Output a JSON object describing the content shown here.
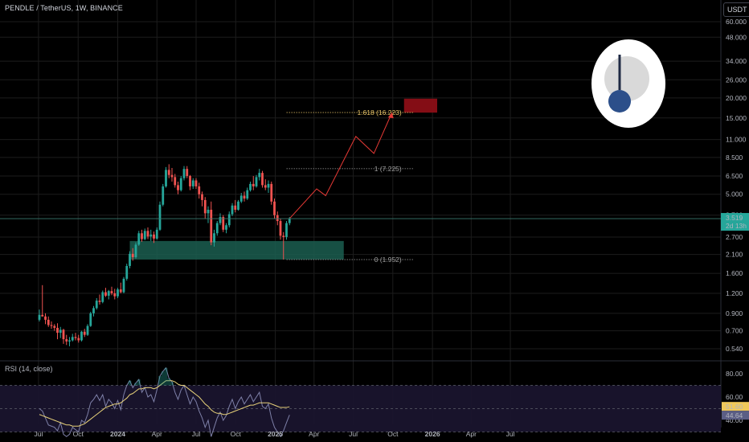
{
  "header": {
    "symbol_title": "PENDLE / TetherUS, 1W, BINANCE",
    "currency": "USDT"
  },
  "colors": {
    "up": "#26a69a",
    "down": "#ef5350",
    "zone": "#1b5e50",
    "target": "#8b0e16",
    "projection": "#e53935",
    "rsi_line": "#7e80a8",
    "rsi_ma": "#e8d27a",
    "grid": "#1c1c1c"
  },
  "chart_data": [
    {
      "type": "candlestick",
      "title": "PENDLE / TetherUS, 1W, BINANCE",
      "scale": "log",
      "y_ticks": [
        "60.000",
        "48.000",
        "34.000",
        "26.000",
        "20.000",
        "15.000",
        "11.000",
        "8.500",
        "6.500",
        "5.000",
        "3.700",
        "2.700",
        "2.100",
        "1.600",
        "1.200",
        "0.900",
        "0.700",
        "0.540"
      ],
      "y_tick_values": [
        60,
        48,
        34,
        26,
        20,
        15,
        11,
        8.5,
        6.5,
        5,
        3.7,
        2.7,
        2.1,
        1.6,
        1.2,
        0.9,
        0.7,
        0.54
      ],
      "x_ticks": [
        "Jul",
        "Oct",
        "2024",
        "Apr",
        "Jul",
        "Oct",
        "2025",
        "Apr",
        "Jul",
        "Oct",
        "2026",
        "Apr",
        "Jul"
      ],
      "x_tick_dates": [
        "2023-07-01",
        "2023-10-01",
        "2024-01-01",
        "2024-04-01",
        "2024-07-01",
        "2024-10-01",
        "2025-01-01",
        "2025-04-01",
        "2025-07-01",
        "2025-10-01",
        "2026-01-01",
        "2026-04-01",
        "2026-07-01"
      ],
      "start_date": "2023-07-03",
      "candles": [
        [
          0.82,
          0.95,
          0.8,
          0.88
        ],
        [
          0.88,
          1.35,
          0.86,
          0.86
        ],
        [
          0.86,
          0.9,
          0.77,
          0.82
        ],
        [
          0.82,
          0.86,
          0.74,
          0.76
        ],
        [
          0.76,
          0.8,
          0.72,
          0.75
        ],
        [
          0.75,
          0.77,
          0.7,
          0.73
        ],
        [
          0.73,
          0.78,
          0.62,
          0.68
        ],
        [
          0.68,
          0.74,
          0.63,
          0.71
        ],
        [
          0.71,
          0.72,
          0.58,
          0.62
        ],
        [
          0.62,
          0.66,
          0.57,
          0.6
        ],
        [
          0.6,
          0.64,
          0.56,
          0.61
        ],
        [
          0.61,
          0.67,
          0.6,
          0.64
        ],
        [
          0.64,
          0.68,
          0.61,
          0.63
        ],
        [
          0.63,
          0.66,
          0.59,
          0.61
        ],
        [
          0.61,
          0.7,
          0.6,
          0.69
        ],
        [
          0.69,
          0.72,
          0.64,
          0.66
        ],
        [
          0.66,
          0.77,
          0.65,
          0.75
        ],
        [
          0.75,
          0.92,
          0.74,
          0.9
        ],
        [
          0.9,
          1.0,
          0.86,
          0.97
        ],
        [
          0.97,
          1.12,
          0.95,
          1.08
        ],
        [
          1.08,
          1.18,
          1.02,
          1.06
        ],
        [
          1.06,
          1.25,
          1.04,
          1.22
        ],
        [
          1.22,
          1.3,
          1.14,
          1.16
        ],
        [
          1.16,
          1.26,
          1.1,
          1.24
        ],
        [
          1.24,
          1.32,
          1.17,
          1.2
        ],
        [
          1.2,
          1.28,
          1.1,
          1.15
        ],
        [
          1.15,
          1.3,
          1.12,
          1.27
        ],
        [
          1.27,
          1.4,
          1.2,
          1.22
        ],
        [
          1.22,
          1.52,
          1.2,
          1.48
        ],
        [
          1.48,
          1.84,
          1.44,
          1.78
        ],
        [
          1.78,
          2.2,
          1.72,
          2.12
        ],
        [
          2.12,
          2.3,
          1.92,
          2.02
        ],
        [
          2.02,
          2.5,
          1.98,
          2.42
        ],
        [
          2.42,
          2.95,
          2.38,
          2.85
        ],
        [
          2.85,
          3.0,
          2.52,
          2.62
        ],
        [
          2.62,
          3.05,
          2.58,
          2.95
        ],
        [
          2.95,
          3.1,
          2.62,
          2.72
        ],
        [
          2.72,
          3.0,
          2.55,
          2.8
        ],
        [
          2.8,
          2.92,
          2.48,
          2.64
        ],
        [
          2.64,
          3.1,
          2.6,
          3.0
        ],
        [
          3.0,
          4.5,
          2.95,
          4.3
        ],
        [
          4.3,
          5.8,
          4.2,
          5.6
        ],
        [
          5.6,
          7.4,
          5.5,
          7.1
        ],
        [
          7.1,
          7.7,
          6.3,
          6.6
        ],
        [
          6.6,
          7.3,
          6.0,
          6.4
        ],
        [
          6.4,
          6.7,
          5.5,
          5.7
        ],
        [
          5.7,
          6.0,
          5.0,
          5.3
        ],
        [
          5.3,
          6.5,
          5.2,
          6.3
        ],
        [
          6.3,
          7.5,
          6.1,
          7.2
        ],
        [
          7.2,
          7.5,
          6.3,
          6.5
        ],
        [
          6.5,
          6.6,
          5.3,
          5.6
        ],
        [
          5.6,
          6.3,
          5.4,
          6.1
        ],
        [
          6.1,
          6.3,
          5.4,
          5.6
        ],
        [
          5.6,
          5.9,
          4.7,
          5.0
        ],
        [
          5.0,
          5.2,
          4.2,
          4.6
        ],
        [
          4.6,
          4.8,
          3.5,
          3.8
        ],
        [
          3.8,
          4.2,
          3.3,
          4.0
        ],
        [
          4.0,
          4.5,
          2.4,
          2.5
        ],
        [
          2.5,
          3.0,
          2.35,
          2.85
        ],
        [
          2.85,
          3.4,
          2.75,
          3.3
        ],
        [
          3.3,
          3.8,
          3.2,
          3.6
        ],
        [
          3.6,
          3.7,
          2.9,
          3.0
        ],
        [
          3.0,
          3.3,
          2.85,
          3.2
        ],
        [
          3.2,
          3.9,
          3.1,
          3.75
        ],
        [
          3.75,
          4.4,
          3.65,
          4.25
        ],
        [
          4.25,
          4.6,
          3.85,
          4.0
        ],
        [
          4.0,
          4.6,
          3.95,
          4.5
        ],
        [
          4.5,
          5.1,
          4.4,
          4.9
        ],
        [
          4.9,
          5.2,
          4.5,
          4.7
        ],
        [
          4.7,
          5.5,
          4.6,
          5.3
        ],
        [
          5.3,
          6.0,
          5.2,
          5.8
        ],
        [
          5.8,
          6.5,
          5.3,
          5.6
        ],
        [
          5.6,
          6.6,
          5.5,
          6.4
        ],
        [
          6.4,
          7.2,
          6.1,
          6.8
        ],
        [
          6.8,
          7.0,
          5.5,
          5.7
        ],
        [
          5.7,
          6.2,
          5.3,
          5.5
        ],
        [
          5.5,
          6.1,
          5.1,
          5.8
        ],
        [
          5.8,
          6.0,
          4.3,
          4.5
        ],
        [
          4.5,
          4.7,
          3.5,
          3.7
        ],
        [
          3.7,
          3.9,
          3.2,
          3.4
        ],
        [
          3.4,
          3.5,
          2.6,
          2.75
        ],
        [
          2.75,
          2.9,
          1.95,
          2.7
        ],
        [
          2.7,
          3.4,
          2.6,
          3.3
        ],
        [
          3.3,
          3.6,
          3.2,
          3.52
        ]
      ],
      "fib_levels": [
        {
          "label": "1.618 (16.223)",
          "value": 16.223
        },
        {
          "label": "1 (7.225)",
          "value": 7.225
        },
        {
          "label": "0 (1.952)",
          "value": 1.952
        }
      ],
      "support_zone": {
        "low": 1.952,
        "high": 2.55,
        "start_week": 30,
        "end_week": 101
      },
      "target_zone": {
        "low": 16.2,
        "high": 19.8,
        "start_week": 121,
        "end_week": 132
      },
      "projection_path": [
        {
          "week": 83,
          "value": 3.52
        },
        {
          "week": 92,
          "value": 5.4
        },
        {
          "week": 95,
          "value": 4.9
        },
        {
          "week": 105,
          "value": 11.5
        },
        {
          "week": 111,
          "value": 9.0
        },
        {
          "week": 117,
          "value": 16.2
        }
      ],
      "last_price": {
        "value": 3.519,
        "label": "3.519",
        "countdown": "2d 13h"
      }
    },
    {
      "type": "line",
      "title": "RSI (14, close)",
      "y_ticks": [
        "80.00",
        "60.00",
        "40.00"
      ],
      "y_tick_values": [
        80,
        60,
        40
      ],
      "bands": [
        70,
        50,
        30
      ],
      "current": {
        "rsi": "44.64",
        "ma": "51.60"
      },
      "series": [
        {
          "name": "RSI",
          "values": [
            50,
            48,
            42,
            36,
            35,
            34,
            31,
            38,
            28,
            26,
            28,
            34,
            32,
            30,
            40,
            38,
            45,
            55,
            58,
            62,
            57,
            62,
            52,
            58,
            55,
            50,
            57,
            49,
            62,
            70,
            74,
            68,
            72,
            75,
            64,
            68,
            60,
            62,
            56,
            66,
            78,
            82,
            85,
            76,
            73,
            64,
            58,
            66,
            70,
            62,
            54,
            60,
            56,
            48,
            42,
            34,
            40,
            26,
            34,
            42,
            47,
            40,
            44,
            52,
            58,
            50,
            56,
            60,
            54,
            58,
            62,
            56,
            60,
            64,
            52,
            50,
            54,
            42,
            34,
            30,
            26,
            31,
            38,
            44.64
          ]
        },
        {
          "name": "MA",
          "values": [
            45,
            44,
            43,
            42,
            41,
            40,
            39,
            38,
            37,
            36,
            36,
            35,
            35,
            35,
            36,
            37,
            39,
            41,
            43,
            45,
            47,
            49,
            51,
            52,
            53,
            54,
            54,
            55,
            57,
            59,
            62,
            63,
            65,
            67,
            67,
            68,
            68,
            68,
            67,
            68,
            70,
            72,
            74,
            74,
            74,
            73,
            71,
            70,
            70,
            68,
            66,
            64,
            62,
            60,
            57,
            54,
            52,
            49,
            47,
            46,
            46,
            45,
            45,
            46,
            47,
            48,
            49,
            50,
            51,
            52,
            53,
            53,
            54,
            55,
            55,
            55,
            55,
            54,
            53,
            52,
            51,
            51,
            51,
            51.6
          ]
        }
      ]
    }
  ],
  "rsi": {
    "title": "RSI (14, close)"
  },
  "logo": {
    "icon": "pendle-gauge-icon"
  }
}
